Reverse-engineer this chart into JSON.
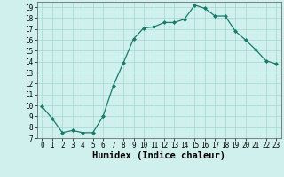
{
  "xlabel": "Humidex (Indice chaleur)",
  "ylabel": "",
  "x": [
    0,
    1,
    2,
    3,
    4,
    5,
    6,
    7,
    8,
    9,
    10,
    11,
    12,
    13,
    14,
    15,
    16,
    17,
    18,
    19,
    20,
    21,
    22,
    23
  ],
  "y": [
    9.9,
    8.8,
    7.5,
    7.7,
    7.5,
    7.5,
    9.0,
    11.8,
    13.9,
    16.1,
    17.1,
    17.2,
    17.6,
    17.6,
    17.9,
    19.2,
    18.9,
    18.2,
    18.2,
    16.8,
    16.0,
    15.1,
    14.1,
    13.8
  ],
  "line_color": "#1a7a6a",
  "marker": "D",
  "marker_size": 2.0,
  "bg_color": "#cff0ec",
  "grid_color": "#a8dcd6",
  "ylim": [
    7,
    19.5
  ],
  "xlim": [
    -0.5,
    23.5
  ],
  "yticks": [
    7,
    8,
    9,
    10,
    11,
    12,
    13,
    14,
    15,
    16,
    17,
    18,
    19
  ],
  "xticks": [
    0,
    1,
    2,
    3,
    4,
    5,
    6,
    7,
    8,
    9,
    10,
    11,
    12,
    13,
    14,
    15,
    16,
    17,
    18,
    19,
    20,
    21,
    22,
    23
  ],
  "tick_fontsize": 5.5,
  "xlabel_fontsize": 7.5,
  "line_width": 0.9
}
